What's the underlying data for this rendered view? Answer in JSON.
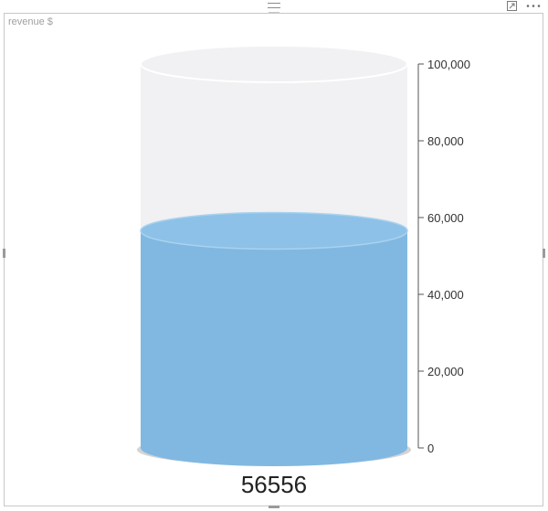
{
  "visual": {
    "title": "revenue $",
    "value_label": "56556",
    "icons": [
      "drag-handle-icon",
      "focus-mode-icon",
      "more-options-icon"
    ]
  },
  "chart_data": {
    "type": "cylinder-gauge",
    "title": "revenue $",
    "value": 56556,
    "ylim": [
      0,
      100000
    ],
    "yticks": [
      0,
      20000,
      40000,
      60000,
      80000,
      100000
    ],
    "ytick_labels": [
      "0",
      "20,000",
      "40,000",
      "60,000",
      "80,000",
      "100,000"
    ],
    "colors": {
      "fill": "#81b8e1",
      "fill_top": "#8dc1e7",
      "empty": "#f1f0f2",
      "axis": "#555555",
      "base_shadow": "#d4d4d4"
    }
  }
}
